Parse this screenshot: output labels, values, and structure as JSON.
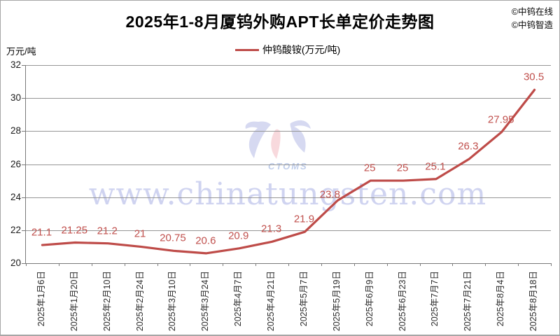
{
  "header": {
    "credits": [
      "©中钨在线",
      "©中钨智造"
    ]
  },
  "watermark": {
    "text": "www.chinatungsten.com",
    "logo_text": "CTOMS"
  },
  "colors": {
    "series_line": "#be4b48",
    "data_label": "#c0504d",
    "gridline": "#969696",
    "axis": "#7a7a7a",
    "watermark": "#949ede"
  },
  "chart_data": {
    "type": "line",
    "title": "2025年1-8月厦钨外购APT长单定价走势图",
    "ylabel": "万元/吨",
    "ylim": [
      20,
      32
    ],
    "ytick_step": 2,
    "grid": true,
    "legend_position": "top",
    "categories": [
      "2025年1月6日",
      "2025年1月20日",
      "2025年2月10日",
      "2025年2月24日",
      "2025年3月10日",
      "2025年3月24日",
      "2025年4月7日",
      "2025年4月21日",
      "2025年5月7日",
      "2025年5月19日",
      "2025年6月9日",
      "2025年6月23日",
      "2025年7月7日",
      "2025年7月21日",
      "2025年8月4日",
      "2025年8月18日"
    ],
    "series": [
      {
        "name": "仲钨酸铵(万元/吨)",
        "color": "#be4b48",
        "values": [
          21.1,
          21.25,
          21.2,
          21,
          20.75,
          20.6,
          20.9,
          21.3,
          21.9,
          23.8,
          25,
          25,
          25.1,
          26.3,
          27.95,
          30.5
        ]
      }
    ]
  }
}
